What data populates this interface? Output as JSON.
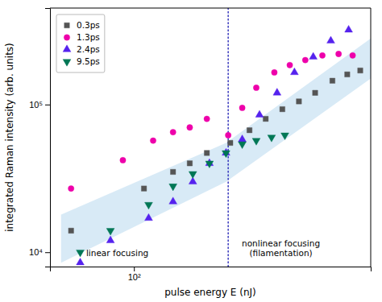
{
  "chart_data": {
    "type": "scatter",
    "xlabel": "pulse energy E (nJ)",
    "ylabel": "integrated Raman intensity (arb. units)",
    "log": true,
    "grid": false,
    "legend": "upper left",
    "xlim": [
      45,
      950
    ],
    "ylim": [
      8000,
      450000
    ],
    "xticks": [
      {
        "value": 100,
        "label": "10²"
      }
    ],
    "yticks": [
      {
        "value": 10000,
        "label": "10⁴"
      },
      {
        "value": 100000,
        "label": "10⁵"
      }
    ],
    "series": [
      {
        "name": "0.3ps",
        "color": "#555555",
        "marker": "square",
        "x": [
          55,
          110,
          145,
          170,
          200,
          250,
          300,
          350,
          410,
          480,
          560,
          660,
          760,
          860
        ],
        "values": [
          14000,
          27000,
          35000,
          40000,
          47000,
          55000,
          67000,
          80000,
          93000,
          105000,
          120000,
          145000,
          160000,
          170000
        ]
      },
      {
        "name": "1.3ps",
        "color": "#ee00aa",
        "marker": "circle",
        "x": [
          55,
          90,
          120,
          145,
          170,
          200,
          245,
          280,
          320,
          380,
          440,
          510,
          600,
          700,
          800
        ],
        "values": [
          27000,
          42000,
          57000,
          65000,
          70000,
          80000,
          62000,
          95000,
          130000,
          165000,
          185000,
          200000,
          215000,
          220000,
          215000
        ]
      },
      {
        "name": "2.4ps",
        "color": "#5522ee",
        "marker": "triangle-up",
        "x": [
          60,
          80,
          115,
          145,
          175,
          205,
          240,
          280,
          330,
          390,
          460,
          550,
          650,
          770
        ],
        "values": [
          8500,
          12000,
          17000,
          22000,
          30000,
          40000,
          47000,
          58000,
          85000,
          120000,
          165000,
          210000,
          270000,
          320000
        ]
      },
      {
        "name": "9.5ps",
        "color": "#007755",
        "marker": "triangle-down",
        "x": [
          60,
          80,
          115,
          145,
          175,
          205,
          240,
          280,
          320,
          370,
          420
        ],
        "values": [
          10000,
          14000,
          21000,
          28000,
          34000,
          40000,
          47000,
          54000,
          57000,
          60000,
          62000
        ]
      }
    ],
    "band": {
      "x": [
        50,
        240,
        950
      ],
      "upper": [
        18000,
        55000,
        280000
      ],
      "lower": [
        8500,
        30000,
        150000
      ],
      "color": "#b8d8ee"
    },
    "reference_lines": [
      {
        "x": 245,
        "color": "#3333bb",
        "line_style": "dotted"
      }
    ],
    "annotations": [
      {
        "text": "linear focusing"
      },
      {
        "text": "nonlinear focusing\n(filamentation)"
      }
    ]
  }
}
